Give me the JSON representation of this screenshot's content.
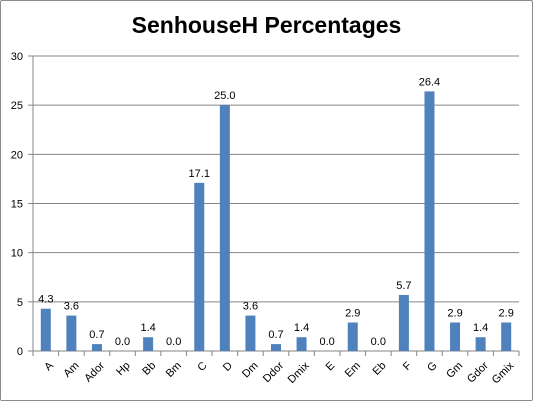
{
  "chart_data": {
    "type": "bar",
    "title": "SenhouseH Percentages",
    "xlabel": "",
    "ylabel": "",
    "categories": [
      "A",
      "Am",
      "Ador",
      "Hp",
      "Bb",
      "Bm",
      "C",
      "D",
      "Dm",
      "Ddor",
      "Dmix",
      "E",
      "Em",
      "Eb",
      "F",
      "G",
      "Gm",
      "Gdor",
      "Gmix"
    ],
    "values": [
      4.3,
      3.6,
      0.7,
      0.0,
      1.4,
      0.0,
      17.1,
      25.0,
      3.6,
      0.7,
      1.4,
      0.0,
      2.9,
      0.0,
      5.7,
      26.4,
      2.9,
      1.4,
      2.9
    ],
    "data_labels": [
      "4.3",
      "3.6",
      "0.7",
      "0.0",
      "1.4",
      "0.0",
      "17.1",
      "25.0",
      "3.6",
      "0.7",
      "1.4",
      "0.0",
      "2.9",
      "0.0",
      "5.7",
      "26.4",
      "2.9",
      "1.4",
      "2.9"
    ],
    "ylim": [
      0,
      30
    ],
    "yticks": [
      0,
      5,
      10,
      15,
      20,
      25,
      30
    ],
    "grid": true,
    "legend": "none",
    "bar_color": "#4f81bd",
    "grid_color": "#868686"
  }
}
